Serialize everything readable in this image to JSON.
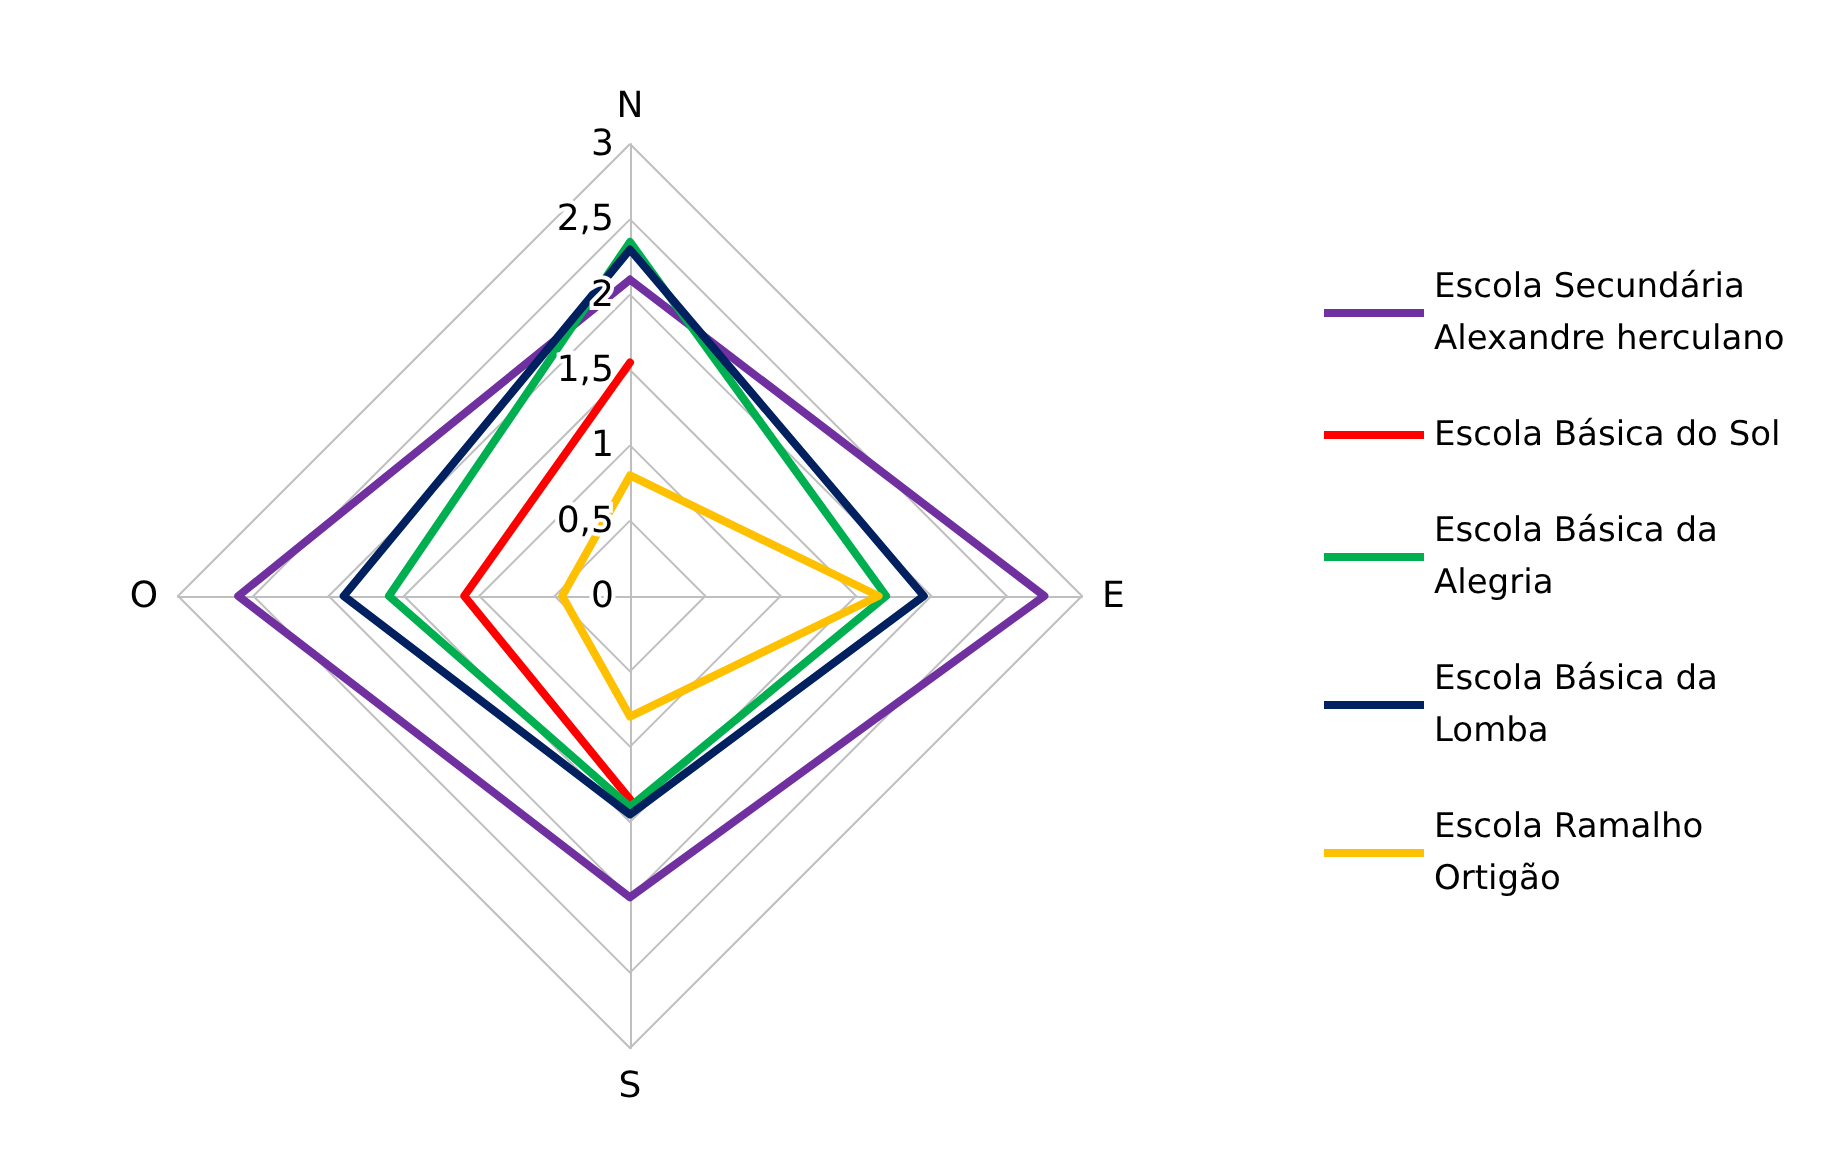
{
  "chart_data": {
    "type": "radar",
    "categories": [
      "N",
      "E",
      "S",
      "O"
    ],
    "ylim": [
      0,
      3
    ],
    "yticks": [
      0,
      {
        "value": 0.5,
        "label": "0,5"
      },
      1,
      {
        "value": 1.5,
        "label": "1,5"
      },
      2,
      {
        "value": 2.5,
        "label": "2,5"
      },
      3
    ],
    "grid": true,
    "legend": "right",
    "marker": "none",
    "series": [
      {
        "name": "Escola Secundária Alexandre herculano",
        "color": "#7030a0",
        "values": [
          2.1,
          2.75,
          2.0,
          2.6
        ]
      },
      {
        "name": "Escola Básica do Sol",
        "color": "#ff0000",
        "values": [
          1.55,
          null,
          1.35,
          1.1
        ]
      },
      {
        "name": "Escola Básica da Alegria",
        "color": "#00b050",
        "values": [
          2.35,
          1.7,
          1.4,
          1.6
        ]
      },
      {
        "name": "Escola Básica da Lomba",
        "color": "#002060",
        "values": [
          2.3,
          1.95,
          1.45,
          1.9
        ]
      },
      {
        "name": "Escola Ramalho Ortigão",
        "color": "#ffc000",
        "values": [
          0.8,
          1.65,
          0.8,
          0.45
        ]
      }
    ]
  }
}
